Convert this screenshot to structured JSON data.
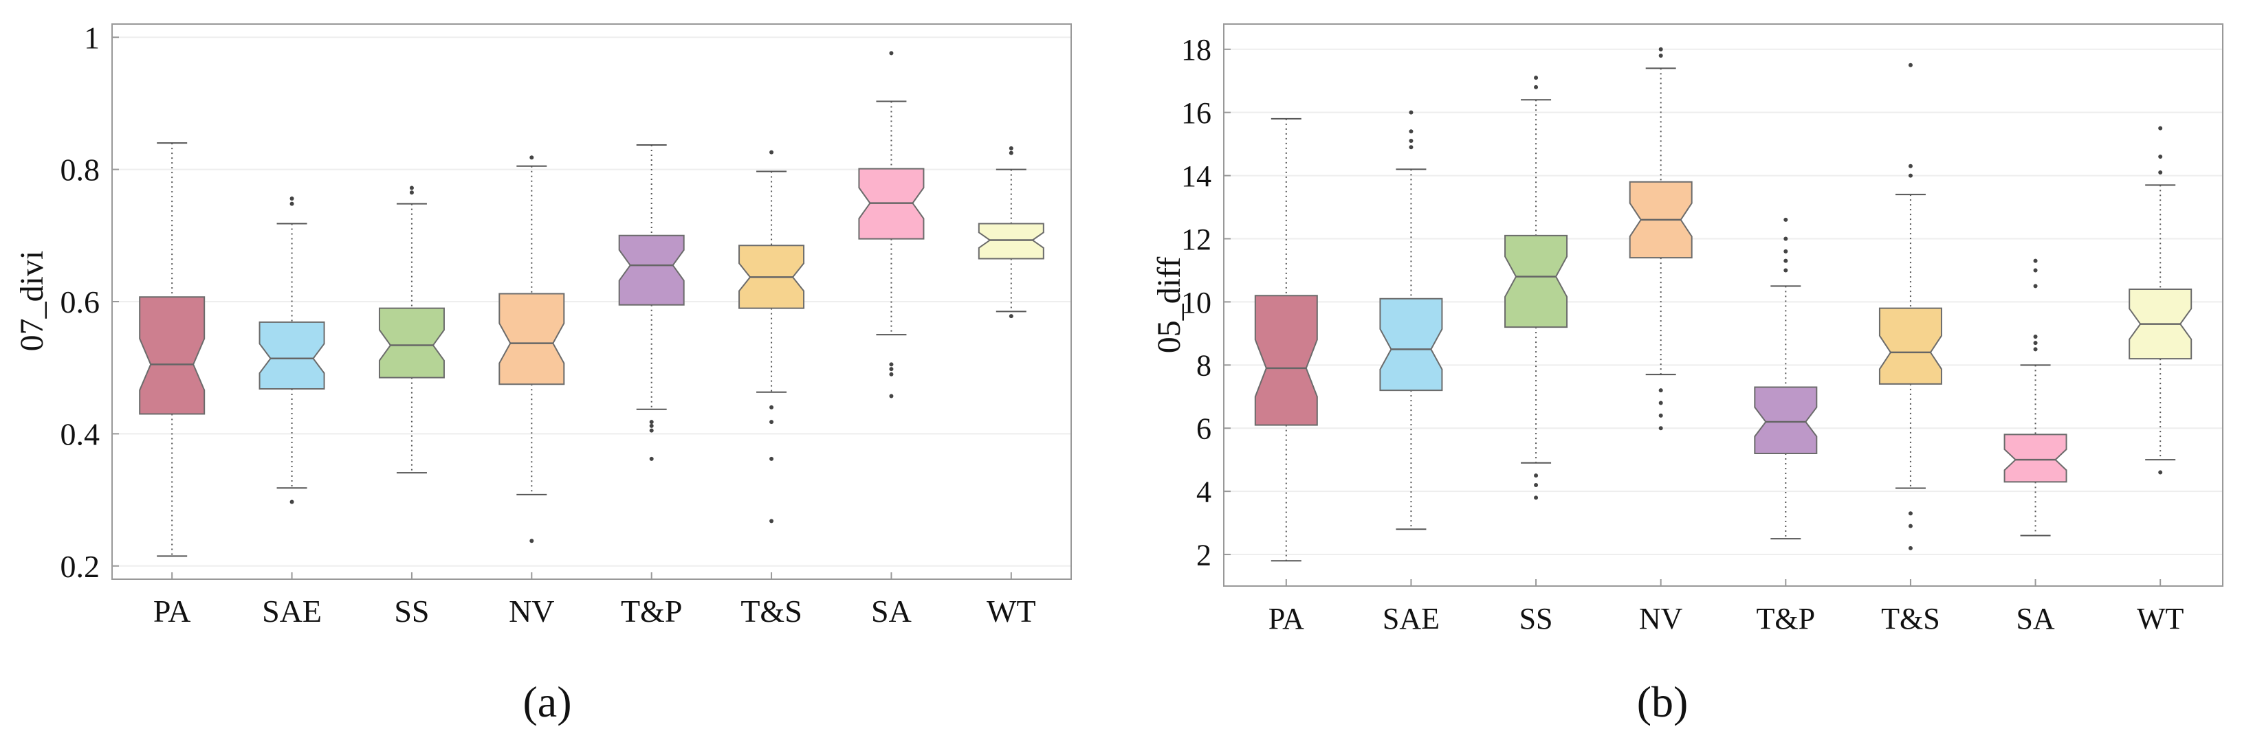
{
  "chart_data": [
    {
      "type": "boxplot",
      "panel_label": "(a)",
      "ylabel": "07_divi",
      "xlabel": "",
      "categories": [
        "PA",
        "SAE",
        "SS",
        "NV",
        "T&P",
        "T&S",
        "SA",
        "WT"
      ],
      "ylim": [
        0.18,
        1.02
      ],
      "yticks": [
        0.2,
        0.4,
        0.6,
        0.8,
        1
      ],
      "ytick_labels": [
        "0.2",
        "0.4",
        "0.6",
        "0.8",
        "1"
      ],
      "grid": true,
      "notched": true,
      "boxes": [
        {
          "name": "PA",
          "color": "#cd7f8f",
          "whisker_low": 0.215,
          "q1": 0.43,
          "median": 0.505,
          "q3": 0.607,
          "whisker_high": 0.84,
          "outliers": []
        },
        {
          "name": "SAE",
          "color": "#a5dcf2",
          "whisker_low": 0.318,
          "q1": 0.468,
          "median": 0.514,
          "q3": 0.569,
          "whisker_high": 0.718,
          "outliers": [
            0.297,
            0.748,
            0.756
          ]
        },
        {
          "name": "SS",
          "color": "#b5d496",
          "whisker_low": 0.341,
          "q1": 0.485,
          "median": 0.534,
          "q3": 0.59,
          "whisker_high": 0.748,
          "outliers": [
            0.765,
            0.772
          ]
        },
        {
          "name": "NV",
          "color": "#f9c89c",
          "whisker_low": 0.308,
          "q1": 0.475,
          "median": 0.537,
          "q3": 0.612,
          "whisker_high": 0.805,
          "outliers": [
            0.238,
            0.818
          ]
        },
        {
          "name": "T&P",
          "color": "#bd98c8",
          "whisker_low": 0.437,
          "q1": 0.595,
          "median": 0.655,
          "q3": 0.7,
          "whisker_high": 0.837,
          "outliers": [
            0.362,
            0.405,
            0.412,
            0.418
          ]
        },
        {
          "name": "T&S",
          "color": "#f6d38e",
          "whisker_low": 0.463,
          "q1": 0.59,
          "median": 0.637,
          "q3": 0.685,
          "whisker_high": 0.797,
          "outliers": [
            0.268,
            0.362,
            0.418,
            0.44,
            0.826
          ]
        },
        {
          "name": "SA",
          "color": "#fcb3cc",
          "whisker_low": 0.55,
          "q1": 0.695,
          "median": 0.749,
          "q3": 0.801,
          "whisker_high": 0.903,
          "outliers": [
            0.457,
            0.49,
            0.498,
            0.505,
            0.976
          ]
        },
        {
          "name": "WT",
          "color": "#f8f8cc",
          "whisker_low": 0.585,
          "q1": 0.665,
          "median": 0.693,
          "q3": 0.718,
          "whisker_high": 0.8,
          "outliers": [
            0.578,
            0.825,
            0.832
          ]
        }
      ]
    },
    {
      "type": "boxplot",
      "panel_label": "(b)",
      "ylabel": "05_diff",
      "xlabel": "",
      "categories": [
        "PA",
        "SAE",
        "SS",
        "NV",
        "T&P",
        "T&S",
        "SA",
        "WT"
      ],
      "ylim": [
        1,
        18.8
      ],
      "yticks": [
        2,
        4,
        6,
        8,
        10,
        12,
        14,
        16,
        18
      ],
      "ytick_labels": [
        "2",
        "4",
        "6",
        "8",
        "10",
        "12",
        "14",
        "16",
        "18"
      ],
      "grid": true,
      "notched": true,
      "boxes": [
        {
          "name": "PA",
          "color": "#cd7f8f",
          "whisker_low": 1.8,
          "q1": 6.1,
          "median": 7.9,
          "q3": 10.2,
          "whisker_high": 15.8,
          "outliers": []
        },
        {
          "name": "SAE",
          "color": "#a5dcf2",
          "whisker_low": 2.8,
          "q1": 7.2,
          "median": 8.5,
          "q3": 10.1,
          "whisker_high": 14.2,
          "outliers": [
            14.9,
            15.1,
            15.4,
            16.0
          ]
        },
        {
          "name": "SS",
          "color": "#b5d496",
          "whisker_low": 4.9,
          "q1": 9.2,
          "median": 10.8,
          "q3": 12.1,
          "whisker_high": 16.4,
          "outliers": [
            3.8,
            4.2,
            4.5,
            16.8,
            17.1
          ]
        },
        {
          "name": "NV",
          "color": "#f9c89c",
          "whisker_low": 7.7,
          "q1": 11.4,
          "median": 12.6,
          "q3": 13.8,
          "whisker_high": 17.4,
          "outliers": [
            6.0,
            6.4,
            6.8,
            7.2,
            17.8,
            18.0
          ]
        },
        {
          "name": "T&P",
          "color": "#bd98c8",
          "whisker_low": 2.5,
          "q1": 5.2,
          "median": 6.2,
          "q3": 7.3,
          "whisker_high": 10.5,
          "outliers": [
            11.0,
            11.3,
            11.6,
            12.0,
            12.6
          ]
        },
        {
          "name": "T&S",
          "color": "#f6d38e",
          "whisker_low": 4.1,
          "q1": 7.4,
          "median": 8.4,
          "q3": 9.8,
          "whisker_high": 13.4,
          "outliers": [
            2.2,
            2.9,
            3.3,
            14.0,
            14.3,
            17.5
          ]
        },
        {
          "name": "SA",
          "color": "#fcb3cc",
          "whisker_low": 2.6,
          "q1": 4.3,
          "median": 5.0,
          "q3": 5.8,
          "whisker_high": 8.0,
          "outliers": [
            8.5,
            8.7,
            8.9,
            10.5,
            11.0,
            11.3
          ]
        },
        {
          "name": "WT",
          "color": "#f8f8cc",
          "whisker_low": 5.0,
          "q1": 8.2,
          "median": 9.3,
          "q3": 10.4,
          "whisker_high": 13.7,
          "outliers": [
            4.6,
            14.1,
            14.6,
            15.5
          ]
        }
      ]
    }
  ],
  "style": {
    "frame_color": "#999999",
    "grid_color": "#eeeeee",
    "whisker_color": "#555555",
    "text_color": "#111111"
  }
}
